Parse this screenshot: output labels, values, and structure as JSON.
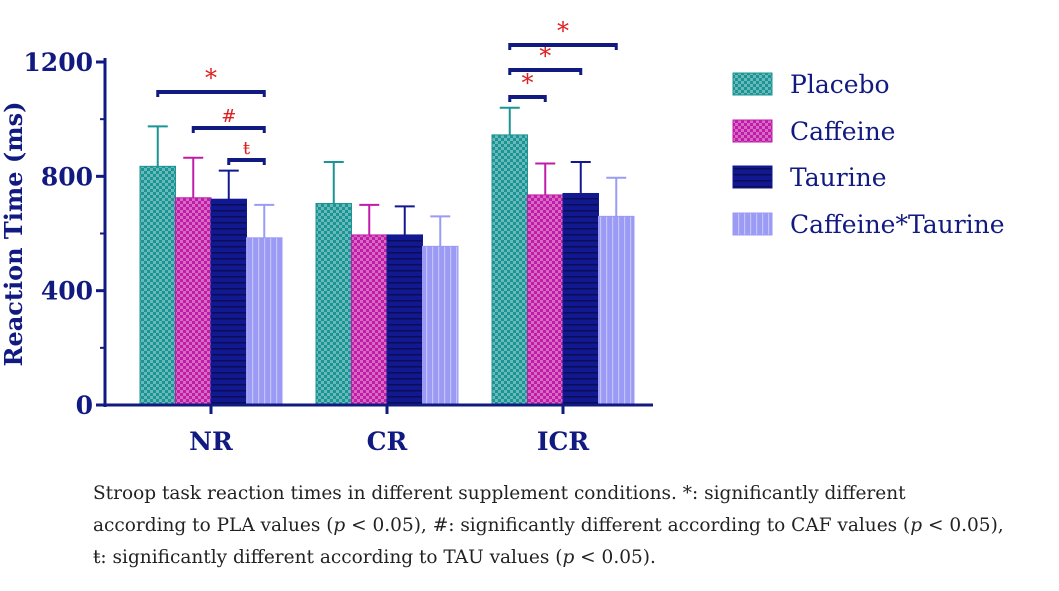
{
  "chart_data": {
    "type": "bar",
    "title": "",
    "xlabel": "",
    "ylabel": "Reaction Time (ms)",
    "ylim": [
      0,
      1200
    ],
    "yticks": [
      "0",
      "400",
      "800",
      "1200"
    ],
    "categories": [
      "NR",
      "CR",
      "ICR"
    ],
    "series": [
      {
        "name": "Placebo",
        "color": "#1a9494",
        "pattern": "checker",
        "values": [
          835,
          705,
          945
        ],
        "errors": [
          140,
          145,
          95
        ]
      },
      {
        "name": "Caffeine",
        "color": "#c01ca8",
        "pattern": "checker",
        "values": [
          725,
          595,
          735
        ],
        "errors": [
          140,
          105,
          110
        ]
      },
      {
        "name": "Taurine",
        "color": "#121890",
        "pattern": "hstripe",
        "values": [
          720,
          595,
          740
        ],
        "errors": [
          100,
          100,
          110
        ]
      },
      {
        "name": "Caffeine*Taurine",
        "color": "#9b9bf5",
        "pattern": "vstripe",
        "values": [
          585,
          555,
          660
        ],
        "errors": [
          115,
          105,
          135
        ]
      }
    ],
    "significance": [
      {
        "category": "NR",
        "from": "Placebo",
        "to": "Caffeine*Taurine",
        "symbol": "*"
      },
      {
        "category": "NR",
        "from": "Caffeine",
        "to": "Caffeine*Taurine",
        "symbol": "#"
      },
      {
        "category": "NR",
        "from": "Taurine",
        "to": "Caffeine*Taurine",
        "symbol": "ŧ"
      },
      {
        "category": "ICR",
        "from": "Placebo",
        "to": "Caffeine",
        "symbol": "*"
      },
      {
        "category": "ICR",
        "from": "Placebo",
        "to": "Taurine",
        "symbol": "*"
      },
      {
        "category": "ICR",
        "from": "Placebo",
        "to": "Caffeine*Taurine",
        "symbol": "*"
      }
    ],
    "legend_position": "right",
    "grid": false,
    "axis_color": "#111a80",
    "sig_color": "#e02020"
  },
  "caption": {
    "line1": "Stroop task reaction times in different supplement conditions. *: significantly different",
    "line2_a": "according to PLA values (",
    "line2_p1": "p",
    "line2_b": " < 0.05), #: significantly different according to CAF values (",
    "line2_p2": "p",
    "line2_c": " < 0.05),",
    "line3_a": "ŧ: significantly different according to TAU values (",
    "line3_p": "p",
    "line3_b": " < 0.05)."
  }
}
